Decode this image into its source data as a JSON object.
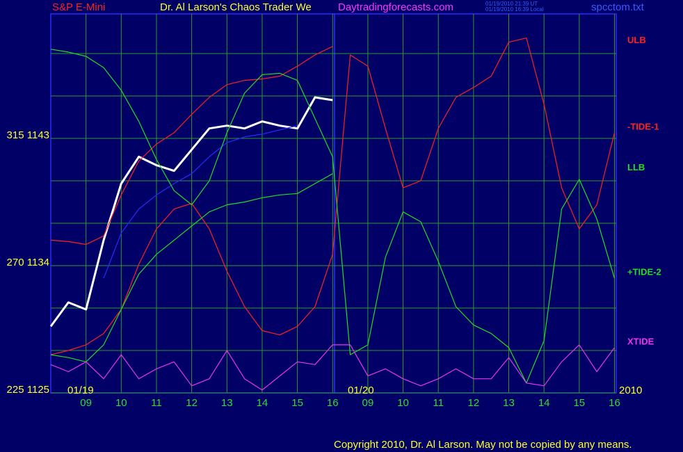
{
  "chart_data": {
    "type": "line",
    "symbol": "S&P E-Mini",
    "title": "Dr. Al Larson's Chaos Trader We",
    "site": "Daytradingforecasts.com",
    "timestamps": [
      "01/19/2010 21:39 UT",
      "01/19/2010 16:39 Local"
    ],
    "file": "spcctom.txt",
    "date_labels": [
      "01/19",
      "01/20",
      "2010"
    ],
    "copyright": "Copyright 2010, Dr. Al Larson. May not be copied by any means.",
    "x": [
      8,
      8.5,
      9,
      9.5,
      10,
      10.5,
      11,
      11.5,
      12,
      12.5,
      13,
      13.5,
      14,
      14.5,
      15,
      15.5,
      16,
      16.5,
      17,
      17.5,
      18,
      18.5,
      19,
      19.5,
      20,
      20.5,
      21,
      21.5,
      22,
      22.5,
      23,
      23.5,
      24
    ],
    "xlim": [
      8,
      24.05
    ],
    "xticks": [
      {
        "value": 9,
        "label": "09"
      },
      10,
      11,
      12,
      13,
      14,
      15,
      16,
      {
        "value": 17,
        "label": "09"
      },
      {
        "value": 18,
        "label": "10"
      },
      {
        "value": 19,
        "label": "11"
      },
      {
        "value": 20,
        "label": "12"
      },
      {
        "value": 21,
        "label": "13"
      },
      {
        "value": 22,
        "label": "14"
      },
      {
        "value": 23,
        "label": "15"
      },
      {
        "value": 24,
        "label": "16"
      }
    ],
    "ylim": [
      1125,
      1151.8
    ],
    "yticks": [
      {
        "value": 1125,
        "label": "225 1125"
      },
      {
        "value": 1134,
        "label": "270 1134"
      },
      {
        "value": 1143,
        "label": "315 1143"
      }
    ],
    "ygrid": [
      1128,
      1131,
      1137,
      1140,
      1146,
      1149
    ],
    "grid": true,
    "series": [
      {
        "color": "#ffffff",
        "values": [
          1129.7,
          1131.4,
          1130.9,
          1135.8,
          1139.8,
          1141.7,
          1141.1,
          1140.7,
          1142.2,
          1143.7,
          1143.9,
          1143.7,
          1144.2,
          1143.9,
          1143.7,
          1145.9,
          1145.7,
          null,
          null,
          null,
          null,
          null,
          null,
          null,
          null,
          null,
          null,
          null,
          null,
          null,
          null,
          null,
          null
        ]
      },
      {
        "color": "#2a2aff",
        "values": [
          null,
          null,
          null,
          1133.1,
          1136.3,
          1138.0,
          1139.0,
          1139.8,
          1140.5,
          1141.7,
          1142.7,
          1143.1,
          1143.3,
          1143.6,
          1143.9,
          null,
          null,
          null,
          null,
          null,
          null,
          null,
          null,
          null,
          null,
          null,
          null,
          null,
          null,
          null,
          null,
          null,
          null
        ]
      },
      {
        "name": "ULB",
        "color": "#ff2020",
        "values": [
          1135.8,
          1135.7,
          1135.5,
          1136.1,
          1139.0,
          1141.4,
          1142.6,
          1143.4,
          1144.7,
          1145.9,
          1146.8,
          1147.1,
          1147.2,
          1147.4,
          1148.1,
          1148.9,
          1149.5,
          null,
          null,
          null,
          null,
          null,
          null,
          null,
          null,
          null,
          null,
          null,
          null,
          null,
          null,
          null,
          null
        ]
      },
      {
        "name": "-TIDE-1",
        "color": "#ff2020",
        "values": [
          1127.7,
          1128.0,
          1128.4,
          1129.2,
          1130.9,
          1134.1,
          1136.6,
          1138.0,
          1138.4,
          1136.6,
          1133.6,
          1131.1,
          1129.4,
          1129.1,
          1129.7,
          1131.1,
          1134.8,
          1148.9,
          1148.1,
          1143.7,
          1139.5,
          1140.0,
          1143.7,
          1145.9,
          1146.6,
          1147.4,
          1149.8,
          1150.1,
          1145.4,
          1139.5,
          1136.6,
          1138.3,
          1143.4
        ]
      },
      {
        "name": "LLB",
        "color": "#22dd22",
        "values": [
          1127.7,
          1127.5,
          1127.2,
          1128.4,
          1130.9,
          1133.4,
          1134.8,
          1135.8,
          1136.8,
          1137.8,
          1138.3,
          1138.5,
          1138.8,
          1139.0,
          1139.1,
          1139.8,
          1140.5,
          null,
          null,
          null,
          null,
          null,
          null,
          null,
          null,
          null,
          null,
          null,
          null,
          null,
          null,
          null,
          null
        ]
      },
      {
        "name": "+TIDE-2",
        "color": "#22dd22",
        "values": [
          1149.3,
          1149.1,
          1148.8,
          1148.0,
          1146.4,
          1144.2,
          1141.5,
          1139.3,
          1138.3,
          1140.0,
          1143.4,
          1146.2,
          1147.5,
          1147.6,
          1147.1,
          1144.4,
          1141.7,
          1127.7,
          1128.4,
          1134.6,
          1137.8,
          1137.1,
          1134.3,
          1131.1,
          1129.8,
          1129.2,
          1128.2,
          1125.7,
          1128.7,
          1138.0,
          1140.1,
          1137.3,
          1133.1
        ]
      },
      {
        "name": "XTIDE",
        "color": "#ee33ee",
        "values": [
          1127.0,
          1126.5,
          1127.2,
          1126.0,
          1127.7,
          1126.0,
          1126.7,
          1127.2,
          1125.5,
          1126.0,
          1128.0,
          1126.0,
          1125.2,
          1126.2,
          1127.2,
          1127.0,
          1128.4,
          1128.4,
          1126.2,
          1126.7,
          1126.0,
          1125.5,
          1126.0,
          1126.7,
          1126.0,
          1126.0,
          1127.5,
          1125.7,
          1125.5,
          1127.2,
          1128.4,
          1126.5,
          1128.2
        ]
      }
    ]
  }
}
